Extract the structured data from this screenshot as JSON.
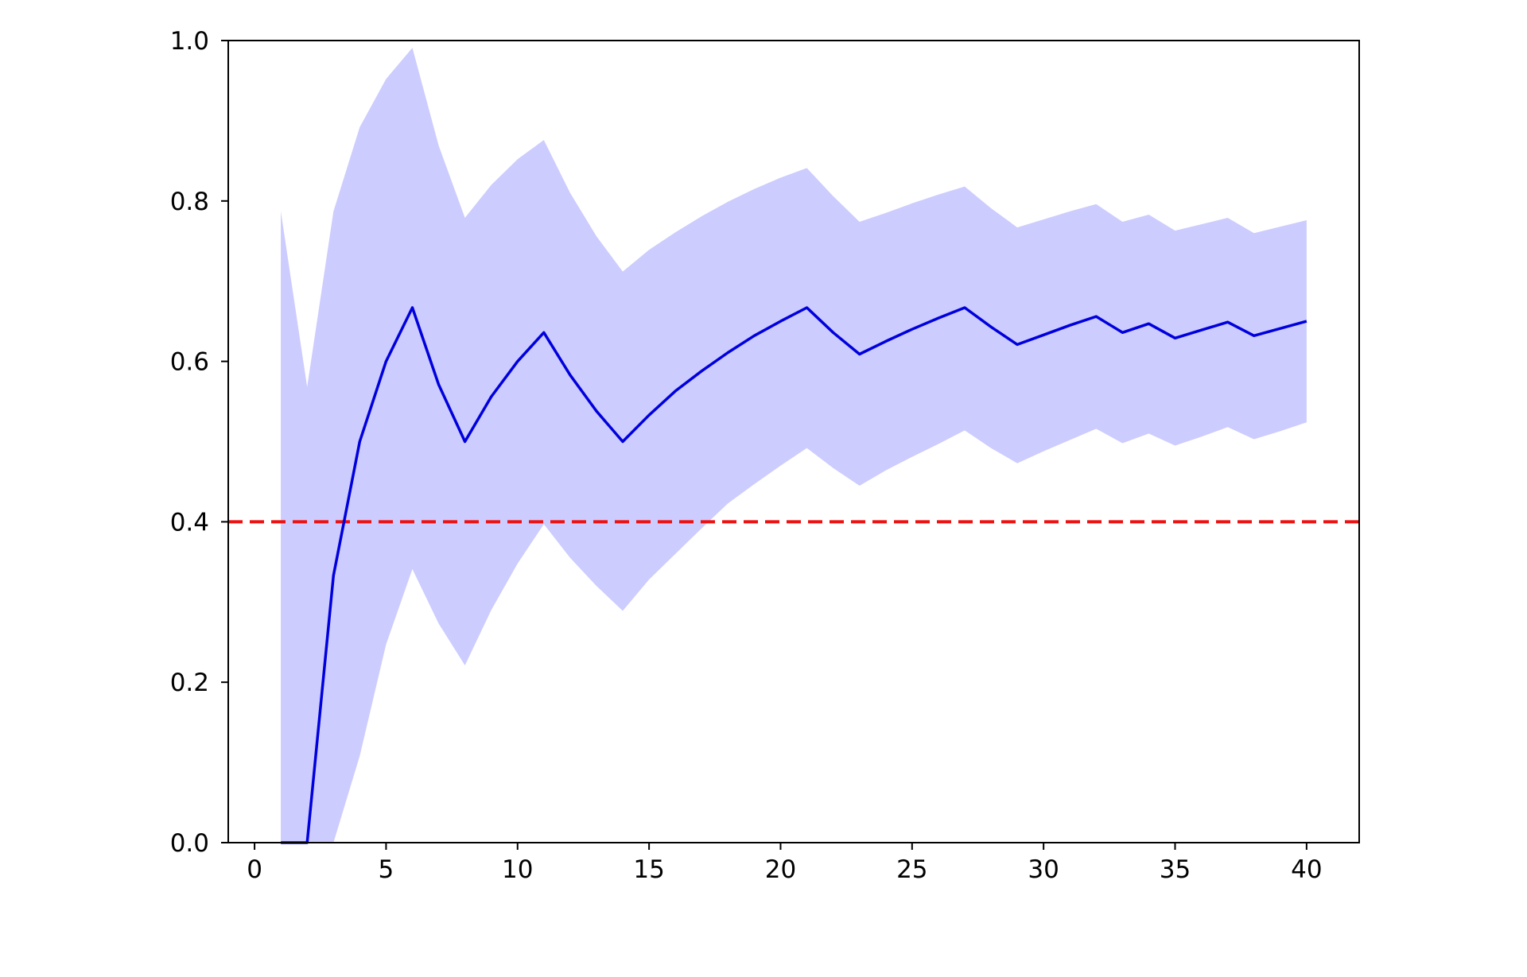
{
  "chart_data": {
    "type": "line",
    "title": "",
    "xlabel": "",
    "ylabel": "",
    "xlim": [
      -1,
      42
    ],
    "ylim": [
      0.0,
      1.0
    ],
    "xticks": [
      0,
      5,
      10,
      15,
      20,
      25,
      30,
      35,
      40
    ],
    "yticks": [
      0.0,
      0.2,
      0.4,
      0.6,
      0.8,
      1.0
    ],
    "xtick_labels": [
      "0",
      "5",
      "10",
      "15",
      "20",
      "25",
      "30",
      "35",
      "40"
    ],
    "ytick_labels": [
      "0.0",
      "0.2",
      "0.4",
      "0.6",
      "0.8",
      "1.0"
    ],
    "grid": false,
    "legend": "none",
    "x": [
      1,
      2,
      3,
      4,
      5,
      6,
      7,
      8,
      9,
      10,
      11,
      12,
      13,
      14,
      15,
      16,
      17,
      18,
      19,
      20,
      21,
      22,
      23,
      24,
      25,
      26,
      27,
      28,
      29,
      30,
      31,
      32,
      33,
      34,
      35,
      36,
      37,
      38,
      39,
      40
    ],
    "series": [
      {
        "values": [
          0.0,
          0.0,
          0.333,
          0.5,
          0.6,
          0.667,
          0.571,
          0.5,
          0.556,
          0.6,
          0.636,
          0.583,
          0.538,
          0.5,
          0.533,
          0.563,
          0.588,
          0.611,
          0.632,
          0.65,
          0.667,
          0.636,
          0.609,
          0.625,
          0.64,
          0.654,
          0.667,
          0.643,
          0.621,
          0.633,
          0.645,
          0.656,
          0.636,
          0.647,
          0.629,
          0.639,
          0.649,
          0.632,
          0.641,
          0.65
        ],
        "color": "#0000dd"
      }
    ],
    "band": {
      "lower": [
        0.0,
        0.0,
        0.0,
        0.108,
        0.247,
        0.341,
        0.273,
        0.221,
        0.29,
        0.348,
        0.397,
        0.355,
        0.32,
        0.289,
        0.328,
        0.36,
        0.392,
        0.423,
        0.447,
        0.47,
        0.492,
        0.467,
        0.445,
        0.464,
        0.481,
        0.497,
        0.514,
        0.492,
        0.473,
        0.488,
        0.502,
        0.516,
        0.498,
        0.51,
        0.495,
        0.506,
        0.518,
        0.503,
        0.513,
        0.524
      ],
      "upper": [
        0.787,
        0.568,
        0.787,
        0.892,
        0.952,
        0.991,
        0.869,
        0.779,
        0.82,
        0.852,
        0.876,
        0.81,
        0.756,
        0.712,
        0.739,
        0.761,
        0.781,
        0.799,
        0.815,
        0.829,
        0.841,
        0.806,
        0.774,
        0.785,
        0.797,
        0.808,
        0.818,
        0.791,
        0.767,
        0.777,
        0.787,
        0.796,
        0.774,
        0.783,
        0.763,
        0.771,
        0.779,
        0.76,
        0.768,
        0.776
      ],
      "color": "#ccccff"
    },
    "reference_line": {
      "y": 0.4,
      "style": "dashed",
      "color": "#ee1111"
    }
  }
}
